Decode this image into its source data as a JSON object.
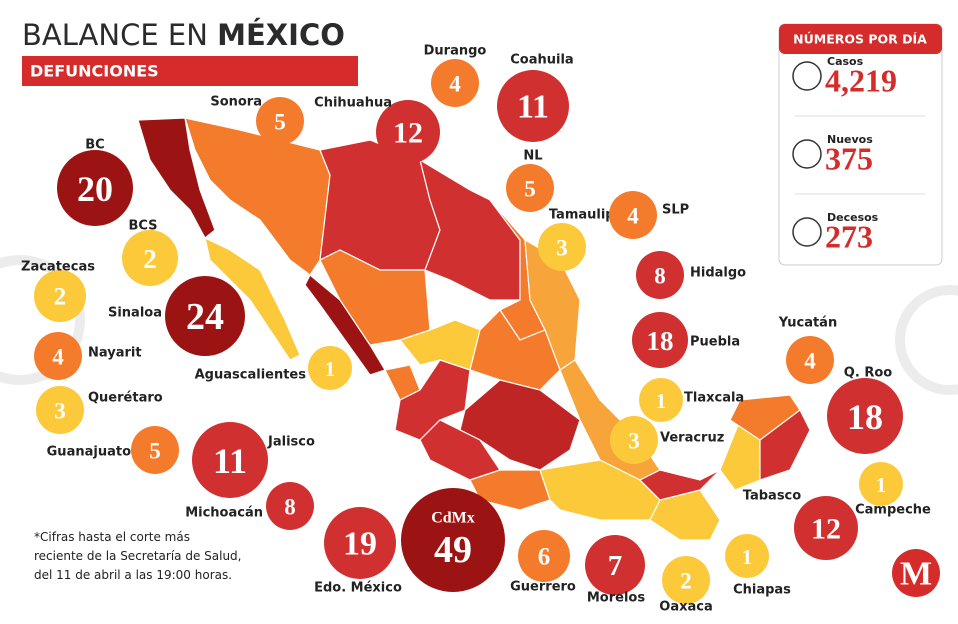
{
  "header": {
    "title_light": "BALANCE EN",
    "title_bold": "MÉXICO",
    "subtitle": "DEFUNCIONES"
  },
  "states": [
    {
      "name": "BC",
      "value": 20
    },
    {
      "name": "BCS",
      "value": 2
    },
    {
      "name": "Zacatecas",
      "value": 2
    },
    {
      "name": "Sinaloa",
      "value": 24
    },
    {
      "name": "Nayarit",
      "value": 4
    },
    {
      "name": "Aguascalientes",
      "value": 1
    },
    {
      "name": "Querétaro",
      "value": 3
    },
    {
      "name": "Guanajuato",
      "value": 5
    },
    {
      "name": "Jalisco",
      "value": 11
    },
    {
      "name": "Michoacán",
      "value": 8
    },
    {
      "name": "Edo. México",
      "value": 19
    },
    {
      "name": "CdMx",
      "value": 49
    },
    {
      "name": "Guerrero",
      "value": 6
    },
    {
      "name": "Morelos",
      "value": 7
    },
    {
      "name": "Oaxaca",
      "value": 2
    },
    {
      "name": "Chiapas",
      "value": 1
    },
    {
      "name": "Sonora",
      "value": 5
    },
    {
      "name": "Chihuahua",
      "value": 12
    },
    {
      "name": "Durango",
      "value": 4
    },
    {
      "name": "Coahuila",
      "value": 11
    },
    {
      "name": "NL",
      "value": 5
    },
    {
      "name": "Tamaulipas",
      "value": 3
    },
    {
      "name": "SLP",
      "value": 4
    },
    {
      "name": "Hidalgo",
      "value": 8
    },
    {
      "name": "Puebla",
      "value": 18
    },
    {
      "name": "Tlaxcala",
      "value": 1
    },
    {
      "name": "Veracruz",
      "value": 3
    },
    {
      "name": "Yucatán",
      "value": 4
    },
    {
      "name": "Q. Roo",
      "value": 18
    },
    {
      "name": "Campeche",
      "value": 1
    },
    {
      "name": "Tabasco",
      "value": 12
    }
  ],
  "stats": {
    "title": "NÚMEROS POR DÍA",
    "items": [
      {
        "label": "Casos",
        "value": "4,219"
      },
      {
        "label": "Nuevos",
        "value": "375"
      },
      {
        "label": "Decesos",
        "value": "273"
      }
    ]
  },
  "footnote": [
    "*Cifras hasta el corte más",
    "reciente de la Secretaría de Salud,",
    "del 11 de abril a las 19:00 horas."
  ],
  "logo": "M"
}
